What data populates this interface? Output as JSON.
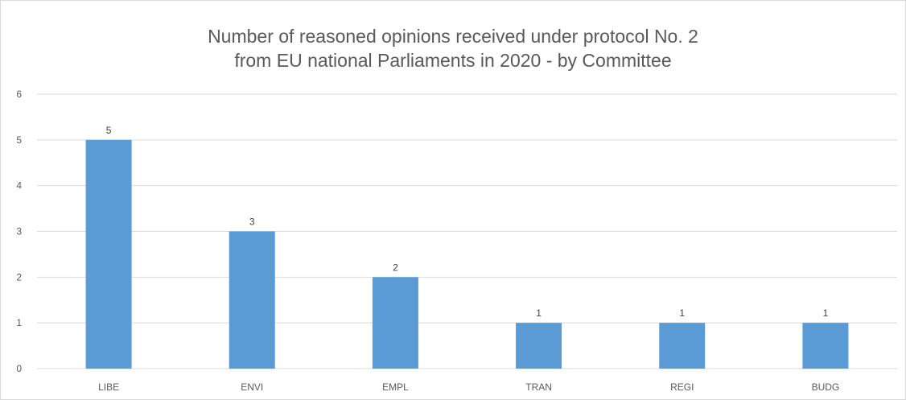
{
  "chart_data": {
    "type": "bar",
    "title_lines": [
      "Number of reasoned opinions received under protocol No. 2",
      "from EU national  Parliaments in 2020 - by Committee"
    ],
    "categories": [
      "LIBE",
      "ENVI",
      "EMPL",
      "TRAN",
      "REGI",
      "BUDG"
    ],
    "values": [
      5,
      3,
      2,
      1,
      1,
      1
    ],
    "data_labels": [
      "5",
      "3",
      "2",
      "1",
      "1",
      "1"
    ],
    "y_ticks": [
      "0",
      "1",
      "2",
      "3",
      "4",
      "5",
      "6"
    ],
    "ylim": [
      0,
      6
    ],
    "grid": true,
    "legend": "none",
    "bar_color": "#5b9bd5",
    "gridline_color": "#d9d9d9",
    "axis_text_color": "#595959"
  }
}
